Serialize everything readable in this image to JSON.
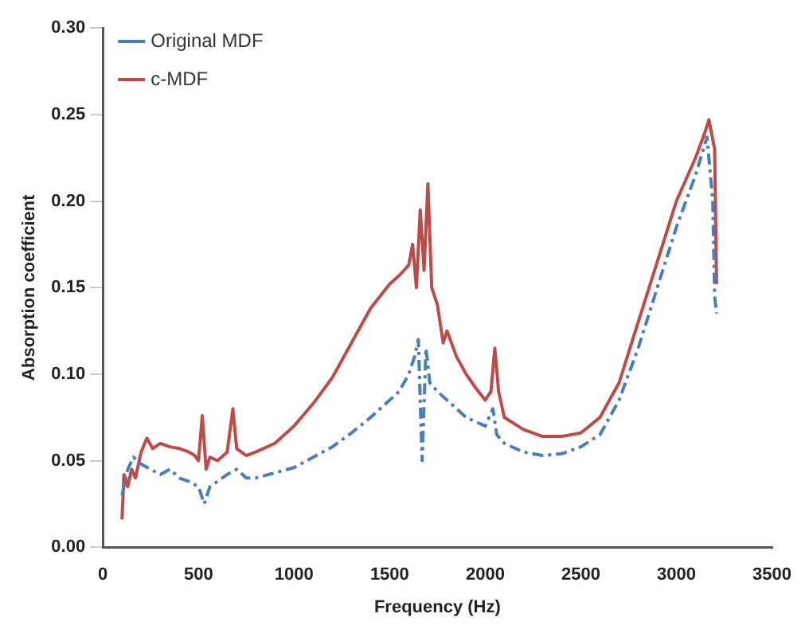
{
  "chart_data": {
    "type": "line",
    "xlabel": "Frequency (Hz)",
    "ylabel": "Absorption coefficient",
    "xlim": [
      0,
      3500
    ],
    "xticks": [
      0,
      500,
      1000,
      1500,
      2000,
      2500,
      3000,
      3500
    ],
    "ylim": [
      0,
      0.3
    ],
    "yticks": [
      {
        "value": 0,
        "label": "0.00"
      },
      {
        "value": 0.05,
        "label": "0.05"
      },
      {
        "value": 0.1,
        "label": "0.10"
      },
      {
        "value": 0.15,
        "label": "0.15"
      },
      {
        "value": 0.2,
        "label": "0.20"
      },
      {
        "value": 0.25,
        "label": "0.25"
      },
      {
        "value": 0.3,
        "label": "0.30"
      }
    ],
    "grid": false,
    "legend": "top left",
    "marker": "none",
    "series": [
      {
        "name": "Original MDF",
        "color": "#4a7ebb",
        "line_style": "dashed",
        "x": [
          100,
          130,
          160,
          200,
          250,
          300,
          350,
          400,
          450,
          500,
          530,
          560,
          600,
          650,
          700,
          750,
          800,
          900,
          1000,
          1100,
          1200,
          1300,
          1400,
          1500,
          1550,
          1600,
          1630,
          1650,
          1670,
          1690,
          1710,
          1750,
          1800,
          1900,
          2000,
          2040,
          2060,
          2100,
          2200,
          2300,
          2400,
          2500,
          2600,
          2700,
          2800,
          2900,
          3000,
          3100,
          3160,
          3190,
          3200,
          3210
        ],
        "values": [
          0.03,
          0.045,
          0.052,
          0.048,
          0.045,
          0.042,
          0.045,
          0.04,
          0.038,
          0.035,
          0.025,
          0.035,
          0.038,
          0.042,
          0.045,
          0.04,
          0.04,
          0.043,
          0.046,
          0.052,
          0.058,
          0.066,
          0.075,
          0.085,
          0.09,
          0.1,
          0.11,
          0.12,
          0.05,
          0.115,
          0.095,
          0.09,
          0.085,
          0.075,
          0.07,
          0.08,
          0.065,
          0.06,
          0.055,
          0.053,
          0.054,
          0.058,
          0.065,
          0.085,
          0.115,
          0.15,
          0.185,
          0.215,
          0.237,
          0.2,
          0.145,
          0.135
        ]
      },
      {
        "name": "c-MDF",
        "color": "#be4b48",
        "line_style": "solid",
        "x": [
          100,
          110,
          130,
          150,
          170,
          200,
          230,
          260,
          300,
          350,
          400,
          450,
          480,
          500,
          520,
          540,
          560,
          600,
          650,
          680,
          700,
          750,
          800,
          900,
          1000,
          1100,
          1200,
          1300,
          1400,
          1500,
          1550,
          1600,
          1620,
          1640,
          1660,
          1680,
          1700,
          1720,
          1750,
          1780,
          1800,
          1850,
          1900,
          1950,
          2000,
          2030,
          2050,
          2070,
          2100,
          2200,
          2300,
          2400,
          2500,
          2600,
          2700,
          2800,
          2900,
          3000,
          3100,
          3150,
          3170,
          3200,
          3210
        ],
        "values": [
          0.016,
          0.042,
          0.035,
          0.045,
          0.04,
          0.055,
          0.063,
          0.057,
          0.06,
          0.058,
          0.057,
          0.055,
          0.053,
          0.05,
          0.076,
          0.045,
          0.052,
          0.05,
          0.055,
          0.08,
          0.057,
          0.053,
          0.055,
          0.06,
          0.07,
          0.083,
          0.098,
          0.118,
          0.138,
          0.152,
          0.157,
          0.163,
          0.175,
          0.15,
          0.195,
          0.16,
          0.21,
          0.15,
          0.14,
          0.118,
          0.125,
          0.11,
          0.1,
          0.092,
          0.085,
          0.09,
          0.115,
          0.09,
          0.075,
          0.068,
          0.064,
          0.064,
          0.066,
          0.075,
          0.095,
          0.13,
          0.165,
          0.2,
          0.225,
          0.24,
          0.247,
          0.23,
          0.152
        ]
      }
    ]
  }
}
